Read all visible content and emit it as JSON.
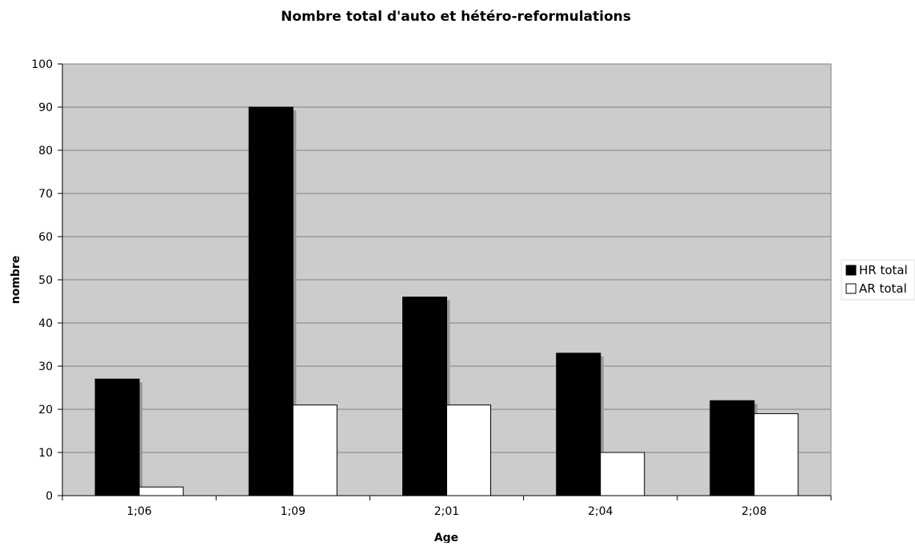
{
  "chart_data": {
    "type": "bar",
    "title": "Nombre total d'auto et hétéro-reformulations",
    "xlabel": "Age",
    "ylabel": "nombre",
    "categories": [
      "1;06",
      "1;09",
      "2;01",
      "2;04",
      "2;08"
    ],
    "series": [
      {
        "name": "HR total",
        "values": [
          27,
          90,
          46,
          33,
          22
        ],
        "color": "#000000"
      },
      {
        "name": "AR total",
        "values": [
          2,
          21,
          21,
          10,
          19
        ],
        "color": "#ffffff"
      }
    ],
    "ylim": [
      0,
      100
    ],
    "yticks": [
      0,
      10,
      20,
      30,
      40,
      50,
      60,
      70,
      80,
      90,
      100
    ],
    "grid": true,
    "plot_background": "#cccccc",
    "legend_position": "right"
  }
}
